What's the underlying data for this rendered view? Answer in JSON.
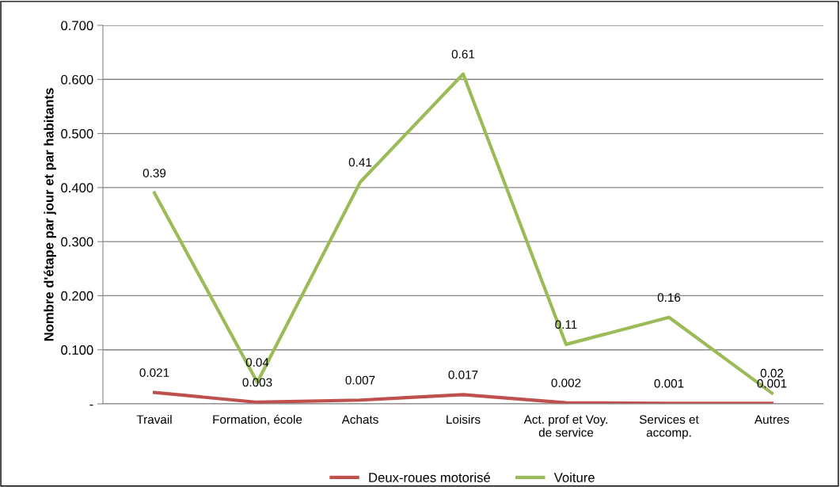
{
  "chart_data": {
    "type": "line",
    "ylabel": "Nombre d'étape par jour et par habitants",
    "categories": [
      "Travail",
      "Formation, école",
      "Achats",
      "Loisirs",
      "Act. prof et Voy.\nde service",
      "Services et\naccomp.",
      "Autres"
    ],
    "series": [
      {
        "name": "Deux-roues motorisé",
        "color": "#c0504d",
        "values": [
          0.021,
          0.003,
          0.007,
          0.017,
          0.002,
          0.001,
          0.001
        ]
      },
      {
        "name": "Voiture",
        "color": "#9bbb59",
        "values": [
          0.39,
          0.04,
          0.41,
          0.61,
          0.11,
          0.16,
          0.02
        ]
      }
    ],
    "ylim": [
      0,
      0.7
    ],
    "yticks": [
      {
        "value": 0,
        "label": "-"
      },
      {
        "value": 0.1,
        "label": "0.100"
      },
      {
        "value": 0.2,
        "label": "0.200"
      },
      {
        "value": 0.3,
        "label": "0.300"
      },
      {
        "value": 0.4,
        "label": "0.400"
      },
      {
        "value": 0.5,
        "label": "0.500"
      },
      {
        "value": 0.6,
        "label": "0.600"
      },
      {
        "value": 0.7,
        "label": "0.700"
      }
    ],
    "grid": "y",
    "legend": "bottom",
    "data_labels": true,
    "marker": "none",
    "line_style": "solid"
  }
}
